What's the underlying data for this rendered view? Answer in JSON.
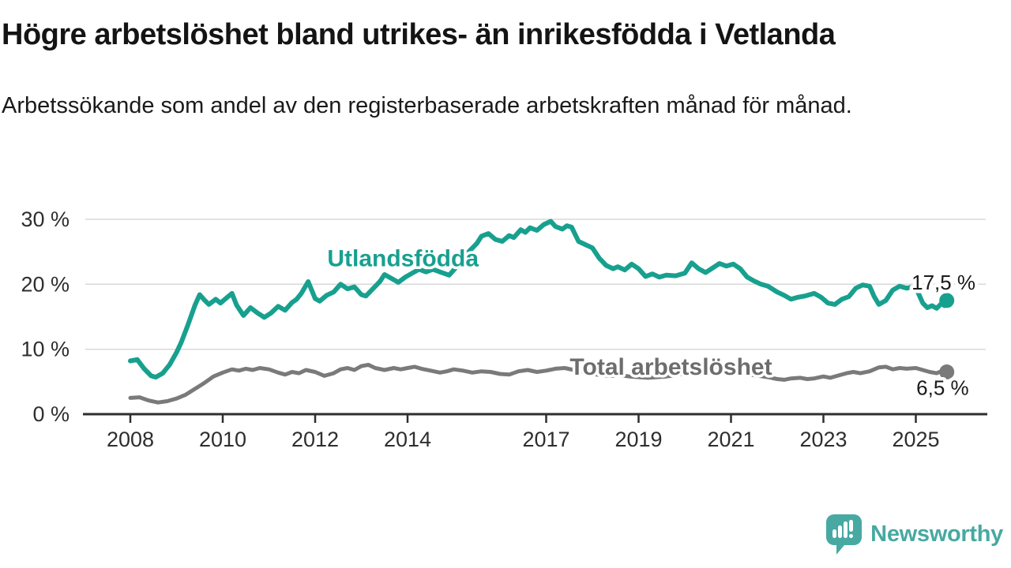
{
  "header": {
    "title": "Högre arbetslöshet bland utrikes- än inrikesfödda i Vetlanda",
    "subtitle": "Arbetssökande som andel av den registerbaserade arbetskraften månad för månad."
  },
  "footer": {
    "brand": "Newsworthy",
    "brand_color": "#47a9a2",
    "icon": "speech-bubble-bar-chart-exclamation-icon"
  },
  "chart_data": {
    "type": "line",
    "title": "Högre arbetslöshet bland utrikes- än inrikesfödda i Vetlanda",
    "subtitle": "Arbetssökande som andel av den registerbaserade arbetskraften månad för månad.",
    "grid": "horizontal",
    "legend_position": "inline-labels",
    "x_axis": {
      "range": [
        2007.6,
        2026.2
      ],
      "ticks": [
        2008,
        2010,
        2012,
        2014,
        2017,
        2019,
        2021,
        2023,
        2025
      ],
      "labels": [
        "2008",
        "2010",
        "2012",
        "2014",
        "2017",
        "2019",
        "2021",
        "2023",
        "2025"
      ]
    },
    "y_axis": {
      "unit": "%",
      "range": [
        0,
        32
      ],
      "ticks": [
        0,
        10,
        20,
        30
      ],
      "labels": [
        "0 %",
        "10 %",
        "20 %",
        "30 %"
      ]
    },
    "series": [
      {
        "id": "total-arbetsloshet",
        "name": "Total arbetslöshet",
        "color": "#7a7a7a",
        "label_color": "#6d6d6d",
        "label_pos": [
          2019.7,
          6.1
        ],
        "end_label": "6,5 %",
        "end_label_pos": [
          2025.58,
          3.0
        ],
        "last_value": "6,5 %",
        "points": [
          [
            2008.0,
            2.5
          ],
          [
            2008.2,
            2.6
          ],
          [
            2008.4,
            2.1
          ],
          [
            2008.6,
            1.8
          ],
          [
            2008.8,
            2.0
          ],
          [
            2009.0,
            2.4
          ],
          [
            2009.2,
            3.0
          ],
          [
            2009.4,
            3.9
          ],
          [
            2009.6,
            4.8
          ],
          [
            2009.8,
            5.8
          ],
          [
            2010.0,
            6.4
          ],
          [
            2010.2,
            6.9
          ],
          [
            2010.35,
            6.7
          ],
          [
            2010.5,
            7.0
          ],
          [
            2010.65,
            6.8
          ],
          [
            2010.8,
            7.1
          ],
          [
            2011.0,
            6.9
          ],
          [
            2011.2,
            6.4
          ],
          [
            2011.35,
            6.1
          ],
          [
            2011.5,
            6.5
          ],
          [
            2011.65,
            6.3
          ],
          [
            2011.8,
            6.8
          ],
          [
            2012.0,
            6.5
          ],
          [
            2012.2,
            5.9
          ],
          [
            2012.4,
            6.3
          ],
          [
            2012.55,
            6.9
          ],
          [
            2012.7,
            7.1
          ],
          [
            2012.85,
            6.8
          ],
          [
            2013.0,
            7.4
          ],
          [
            2013.15,
            7.6
          ],
          [
            2013.3,
            7.1
          ],
          [
            2013.5,
            6.8
          ],
          [
            2013.7,
            7.1
          ],
          [
            2013.85,
            6.9
          ],
          [
            2014.0,
            7.1
          ],
          [
            2014.15,
            7.3
          ],
          [
            2014.3,
            7.0
          ],
          [
            2014.5,
            6.7
          ],
          [
            2014.7,
            6.4
          ],
          [
            2014.85,
            6.6
          ],
          [
            2015.0,
            6.9
          ],
          [
            2015.2,
            6.7
          ],
          [
            2015.4,
            6.4
          ],
          [
            2015.6,
            6.6
          ],
          [
            2015.8,
            6.5
          ],
          [
            2016.0,
            6.2
          ],
          [
            2016.2,
            6.1
          ],
          [
            2016.4,
            6.6
          ],
          [
            2016.6,
            6.8
          ],
          [
            2016.8,
            6.5
          ],
          [
            2017.0,
            6.7
          ],
          [
            2017.2,
            7.0
          ],
          [
            2017.4,
            7.1
          ],
          [
            2017.6,
            6.8
          ],
          [
            2017.8,
            6.5
          ],
          [
            2018.0,
            6.2
          ],
          [
            2018.2,
            6.0
          ],
          [
            2018.4,
            5.9
          ],
          [
            2018.6,
            6.0
          ],
          [
            2018.8,
            5.8
          ],
          [
            2019.0,
            5.7
          ],
          [
            2019.2,
            5.6
          ],
          [
            2019.4,
            5.7
          ],
          [
            2019.6,
            5.8
          ],
          [
            2019.8,
            6.0
          ],
          [
            2020.0,
            6.3
          ],
          [
            2020.2,
            7.2
          ],
          [
            2020.4,
            7.5
          ],
          [
            2020.6,
            7.4
          ],
          [
            2020.8,
            7.2
          ],
          [
            2021.0,
            6.9
          ],
          [
            2021.2,
            6.5
          ],
          [
            2021.4,
            6.1
          ],
          [
            2021.6,
            5.9
          ],
          [
            2021.8,
            5.7
          ],
          [
            2022.0,
            5.4
          ],
          [
            2022.15,
            5.3
          ],
          [
            2022.3,
            5.5
          ],
          [
            2022.5,
            5.6
          ],
          [
            2022.65,
            5.4
          ],
          [
            2022.8,
            5.5
          ],
          [
            2023.0,
            5.8
          ],
          [
            2023.15,
            5.6
          ],
          [
            2023.3,
            5.9
          ],
          [
            2023.5,
            6.3
          ],
          [
            2023.65,
            6.5
          ],
          [
            2023.8,
            6.3
          ],
          [
            2024.0,
            6.6
          ],
          [
            2024.2,
            7.2
          ],
          [
            2024.35,
            7.3
          ],
          [
            2024.5,
            6.9
          ],
          [
            2024.65,
            7.1
          ],
          [
            2024.8,
            7.0
          ],
          [
            2025.0,
            7.1
          ],
          [
            2025.15,
            6.8
          ],
          [
            2025.3,
            6.5
          ],
          [
            2025.45,
            6.3
          ],
          [
            2025.55,
            6.6
          ],
          [
            2025.67,
            6.5
          ]
        ]
      },
      {
        "id": "utlandsfodda",
        "name": "Utlandsfödda",
        "color": "#18a08f",
        "label_color": "#18a08f",
        "label_pos": [
          2013.9,
          22.8
        ],
        "end_label": "17,5 %",
        "end_label_pos": [
          2025.6,
          19.2
        ],
        "last_value": "17,5 %",
        "points": [
          [
            2008.0,
            8.2
          ],
          [
            2008.15,
            8.4
          ],
          [
            2008.3,
            7.0
          ],
          [
            2008.45,
            5.9
          ],
          [
            2008.55,
            5.7
          ],
          [
            2008.7,
            6.3
          ],
          [
            2008.85,
            7.6
          ],
          [
            2009.0,
            9.5
          ],
          [
            2009.1,
            11.0
          ],
          [
            2009.25,
            13.8
          ],
          [
            2009.4,
            16.8
          ],
          [
            2009.5,
            18.4
          ],
          [
            2009.6,
            17.6
          ],
          [
            2009.7,
            16.9
          ],
          [
            2009.85,
            17.7
          ],
          [
            2009.95,
            17.1
          ],
          [
            2010.1,
            18.0
          ],
          [
            2010.2,
            18.6
          ],
          [
            2010.3,
            16.8
          ],
          [
            2010.45,
            15.2
          ],
          [
            2010.6,
            16.4
          ],
          [
            2010.75,
            15.6
          ],
          [
            2010.9,
            14.9
          ],
          [
            2011.05,
            15.6
          ],
          [
            2011.2,
            16.6
          ],
          [
            2011.35,
            16.0
          ],
          [
            2011.5,
            17.2
          ],
          [
            2011.6,
            17.7
          ],
          [
            2011.7,
            18.6
          ],
          [
            2011.85,
            20.4
          ],
          [
            2012.0,
            17.8
          ],
          [
            2012.1,
            17.4
          ],
          [
            2012.25,
            18.3
          ],
          [
            2012.4,
            18.8
          ],
          [
            2012.55,
            20.0
          ],
          [
            2012.7,
            19.3
          ],
          [
            2012.85,
            19.6
          ],
          [
            2013.0,
            18.4
          ],
          [
            2013.1,
            18.2
          ],
          [
            2013.25,
            19.3
          ],
          [
            2013.4,
            20.4
          ],
          [
            2013.5,
            21.5
          ],
          [
            2013.65,
            20.9
          ],
          [
            2013.8,
            20.3
          ],
          [
            2013.95,
            21.1
          ],
          [
            2014.1,
            21.7
          ],
          [
            2014.25,
            22.3
          ],
          [
            2014.4,
            21.9
          ],
          [
            2014.55,
            22.3
          ],
          [
            2014.7,
            21.9
          ],
          [
            2014.9,
            21.4
          ],
          [
            2015.05,
            22.6
          ],
          [
            2015.2,
            24.0
          ],
          [
            2015.35,
            25.2
          ],
          [
            2015.5,
            26.3
          ],
          [
            2015.6,
            27.4
          ],
          [
            2015.75,
            27.8
          ],
          [
            2015.9,
            26.9
          ],
          [
            2016.05,
            26.6
          ],
          [
            2016.2,
            27.5
          ],
          [
            2016.3,
            27.2
          ],
          [
            2016.45,
            28.4
          ],
          [
            2016.55,
            28.0
          ],
          [
            2016.65,
            28.7
          ],
          [
            2016.8,
            28.3
          ],
          [
            2016.95,
            29.2
          ],
          [
            2017.1,
            29.7
          ],
          [
            2017.2,
            28.9
          ],
          [
            2017.35,
            28.5
          ],
          [
            2017.45,
            29.0
          ],
          [
            2017.55,
            28.8
          ],
          [
            2017.7,
            26.6
          ],
          [
            2017.85,
            26.1
          ],
          [
            2018.0,
            25.6
          ],
          [
            2018.15,
            24.0
          ],
          [
            2018.3,
            22.9
          ],
          [
            2018.45,
            22.4
          ],
          [
            2018.55,
            22.7
          ],
          [
            2018.7,
            22.2
          ],
          [
            2018.85,
            23.1
          ],
          [
            2019.0,
            22.4
          ],
          [
            2019.15,
            21.2
          ],
          [
            2019.3,
            21.6
          ],
          [
            2019.45,
            21.1
          ],
          [
            2019.6,
            21.4
          ],
          [
            2019.8,
            21.3
          ],
          [
            2020.0,
            21.7
          ],
          [
            2020.15,
            23.3
          ],
          [
            2020.3,
            22.4
          ],
          [
            2020.45,
            21.8
          ],
          [
            2020.6,
            22.5
          ],
          [
            2020.75,
            23.2
          ],
          [
            2020.9,
            22.8
          ],
          [
            2021.05,
            23.1
          ],
          [
            2021.2,
            22.4
          ],
          [
            2021.35,
            21.1
          ],
          [
            2021.5,
            20.5
          ],
          [
            2021.65,
            20.0
          ],
          [
            2021.8,
            19.7
          ],
          [
            2022.0,
            18.8
          ],
          [
            2022.15,
            18.3
          ],
          [
            2022.3,
            17.7
          ],
          [
            2022.45,
            18.0
          ],
          [
            2022.6,
            18.2
          ],
          [
            2022.8,
            18.6
          ],
          [
            2022.95,
            18.0
          ],
          [
            2023.1,
            17.1
          ],
          [
            2023.25,
            16.9
          ],
          [
            2023.4,
            17.7
          ],
          [
            2023.55,
            18.1
          ],
          [
            2023.7,
            19.4
          ],
          [
            2023.85,
            19.9
          ],
          [
            2024.0,
            19.7
          ],
          [
            2024.1,
            18.1
          ],
          [
            2024.2,
            16.9
          ],
          [
            2024.35,
            17.5
          ],
          [
            2024.5,
            19.1
          ],
          [
            2024.65,
            19.7
          ],
          [
            2024.8,
            19.4
          ],
          [
            2024.95,
            19.6
          ],
          [
            2025.05,
            18.7
          ],
          [
            2025.15,
            17.1
          ],
          [
            2025.25,
            16.4
          ],
          [
            2025.35,
            16.7
          ],
          [
            2025.45,
            16.3
          ],
          [
            2025.55,
            17.0
          ],
          [
            2025.62,
            16.7
          ],
          [
            2025.67,
            17.5
          ]
        ]
      }
    ]
  }
}
